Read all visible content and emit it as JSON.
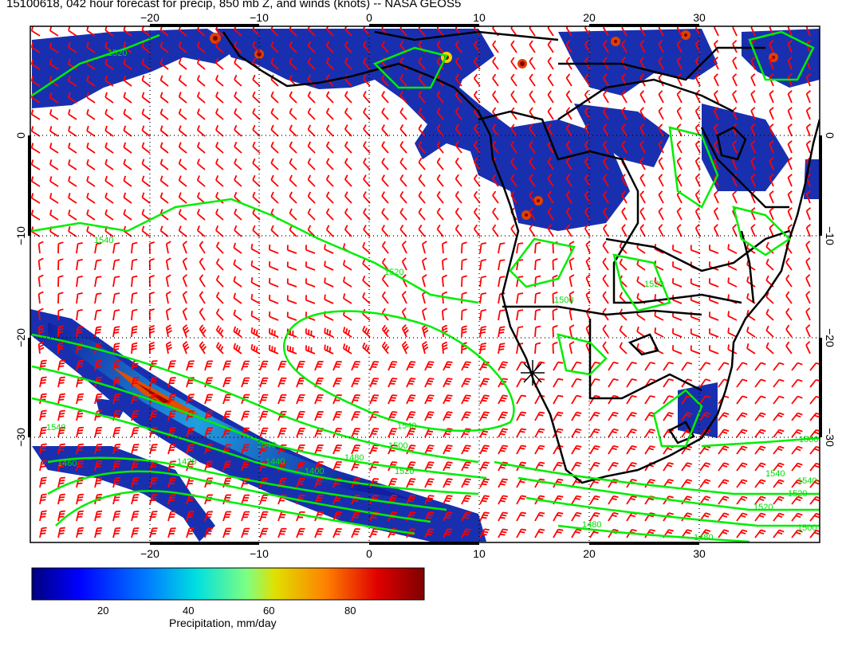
{
  "title": "15100618, 042 hour forecast for precip, 850 mb Z, and winds (knots) -- NASA GEOS5",
  "map": {
    "lon_ticks": [
      "−20",
      "−10",
      "0",
      "10",
      "20",
      "30"
    ],
    "lat_ticks": [
      "0",
      "−10",
      "−20",
      "−30"
    ],
    "lat_ticks_right": [
      "0",
      "−10",
      "−20",
      "−30"
    ],
    "contour_labels": [
      "1520",
      "1540",
      "1520",
      "1520",
      "1500",
      "1540",
      "1500",
      "1540",
      "1420",
      "1440",
      "1400",
      "1460",
      "1480",
      "1520",
      "1480",
      "1500",
      "1540",
      "1540",
      "1520",
      "1520",
      "1500",
      "1480",
      "1540"
    ],
    "colors": {
      "barbs": "#ff0000",
      "contours": "#00ee00",
      "coast": "#000000"
    },
    "marker": "location-asterisk"
  },
  "colorbar": {
    "title": "Precipitation, mm/day",
    "ticks": [
      "20",
      "40",
      "60",
      "80"
    ]
  }
}
